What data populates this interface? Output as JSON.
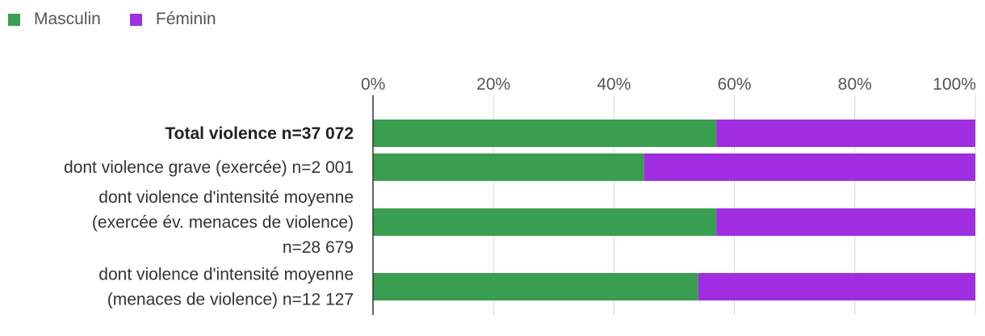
{
  "chart_data": {
    "type": "bar",
    "orientation": "horizontal",
    "stacked": "percent",
    "xlim": [
      0,
      100
    ],
    "ticks": [
      "0%",
      "20%",
      "40%",
      "60%",
      "80%",
      "100%"
    ],
    "grid": true,
    "legend_position": "top-left",
    "categories": [
      {
        "lines": [
          "Total violence n=37 072"
        ],
        "bold": true
      },
      {
        "lines": [
          "dont violence grave (exercée) n=2 001"
        ],
        "bold": false
      },
      {
        "lines": [
          "dont violence d'intensité moyenne",
          "(exercée év. menaces de violence)",
          "n=28 679"
        ],
        "bold": false
      },
      {
        "lines": [
          "dont violence d'intensité moyenne",
          "(menaces de violence) n=12 127"
        ],
        "bold": false
      }
    ],
    "series": [
      {
        "name": "Masculin",
        "color": "#3a9e50",
        "values": [
          57,
          45,
          57,
          54
        ]
      },
      {
        "name": "Féminin",
        "color": "#a02de0",
        "values": [
          43,
          55,
          43,
          46
        ]
      }
    ]
  }
}
